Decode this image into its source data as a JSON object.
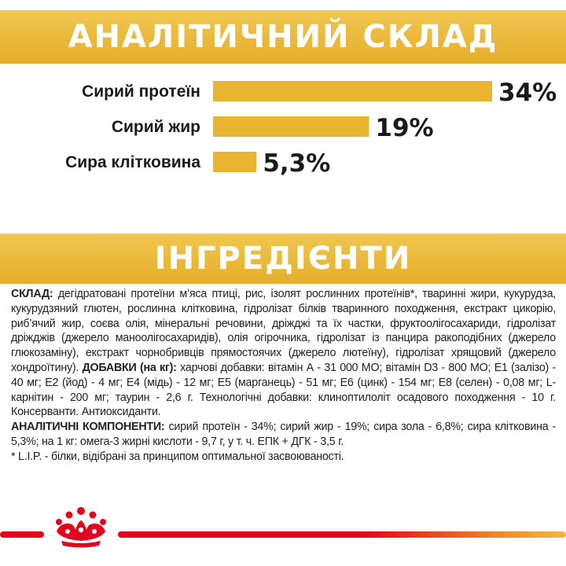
{
  "header": {
    "title": "АНАЛІТИЧНИЙ СКЛАД"
  },
  "colors": {
    "accent": "#e9b42f",
    "brand_red": "#e3051b",
    "text": "#1a1a1a"
  },
  "chart_data": {
    "type": "bar",
    "orientation": "horizontal",
    "categories": [
      "Сирий протеїн",
      "Сирий жир",
      "Сира клітковина"
    ],
    "values": [
      34,
      19,
      5.3
    ],
    "value_labels": [
      "34%",
      "19%",
      "5,3%"
    ],
    "grid": false,
    "color": "#e9b42f"
  },
  "ingredients": {
    "title": "ІНГРЕДІЄНТИ",
    "composition_label": "СКЛАД:",
    "composition_text": " дегідратовані протеїни м’яса птиці, рис, ізолят рослинних протеїнів*, тваринні жири, кукурудза, кукурудзяний глютен, рослинна клітковина, гідролізат білків тваринного походження, екстракт цикорію, риб’ячий жир, соєва олія, мінеральні речовини, дріжджі та їх частки, фруктоолігосахариди, гідролізат дріжджів (джерело маноолігосахаридів), олія огірочника, гідролізат із панцира ракоподібних (джерело глюкозаміну), екстракт чорнобривців прямостоячих (джерело лютеїну), гідролізат хрящовий (джерело хондроїтину). ",
    "additives_label": "ДОБАВКИ (на кг):",
    "additives_text": " харчові добавки: вітамін А - 31 000 МО; вітамін D3 - 800 МО; Е1 (залізо) - 40 мг; Е2 (йод) - 4 мг; Е4 (мідь) - 12 мг; Е5 (марганець) - 51 мг; Е6 (цинк) - 154 мг; Е8 (селен) - 0,08 мг; L-карнітин - 200 мг; таурин - 2,6 г. Технологічні добавки: клиноптилоліт осадового походження - 10 г. Консерванти. Антиоксиданти.",
    "analytical_label": "АНАЛІТИЧНІ КОМПОНЕНТИ:",
    "analytical_text": " сирий протеїн - 34%; сирий жир - 19%; сира зола - 6,8%; сира клітковина - 5,3%; на 1 кг: омега-3 жирні кислоти - 9,7 г, у т. ч. ЕПК + ДГК - 3,5 г.",
    "footnote": "* L.I.P. - білки, відібрані за принципом оптимальної засвоюваності."
  },
  "footer": {
    "logo_icon": "royal-canin-crown-icon"
  }
}
